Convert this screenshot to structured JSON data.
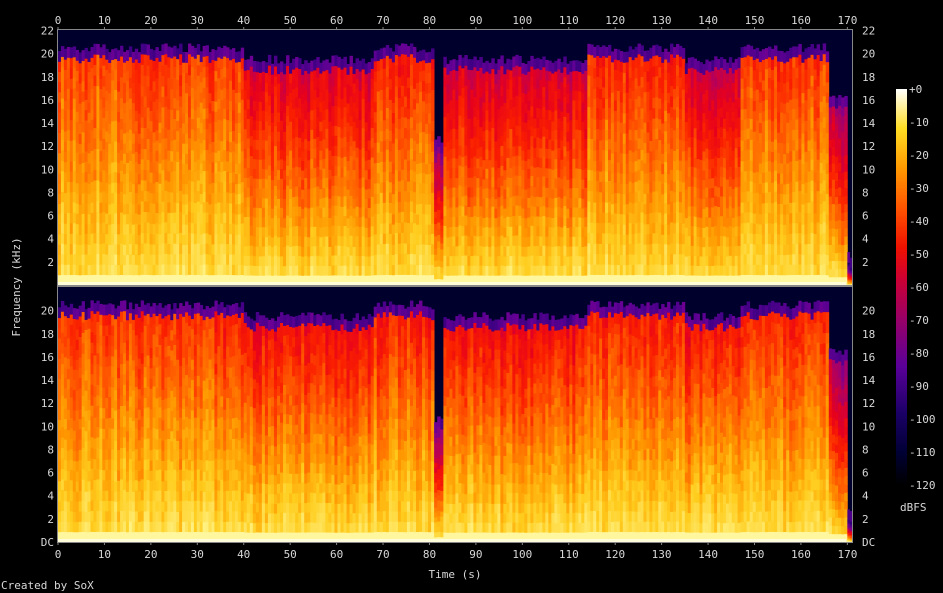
{
  "chart_data": {
    "type": "heatmap",
    "xlabel": "Time (s)",
    "ylabel": "Frequency (kHz)",
    "xlim": [
      0,
      171
    ],
    "ylim": [
      0,
      22.05
    ],
    "x_ticks": [
      0,
      10,
      20,
      30,
      40,
      50,
      60,
      70,
      80,
      90,
      100,
      110,
      120,
      130,
      140,
      150,
      160,
      170
    ],
    "y_ticks_top": [
      "2",
      "4",
      "6",
      "8",
      "10",
      "12",
      "14",
      "16",
      "18",
      "20",
      "22"
    ],
    "y_ticks_bottom": [
      "DC",
      "2",
      "4",
      "6",
      "8",
      "10",
      "12",
      "14",
      "16",
      "18",
      "20"
    ],
    "colorbar": {
      "label": "dBFS",
      "range": [
        -120,
        0
      ],
      "ticks": [
        "+0",
        "-10",
        "-20",
        "-30",
        "-40",
        "-50",
        "-60",
        "-70",
        "-80",
        "-90",
        "-100",
        "-110",
        "-120"
      ],
      "colormap": "sox-heat"
    },
    "channels": [
      {
        "segments": [
          {
            "t0": 0,
            "t1": 14,
            "cutoff_khz": 20,
            "level_db": -45
          },
          {
            "t0": 14,
            "t1": 28,
            "cutoff_khz": 20,
            "level_db": -50
          },
          {
            "t0": 28,
            "t1": 40,
            "cutoff_khz": 20,
            "level_db": -48
          },
          {
            "t0": 40,
            "t1": 68,
            "cutoff_khz": 19,
            "level_db": -60
          },
          {
            "t0": 68,
            "t1": 81,
            "cutoff_khz": 20,
            "level_db": -52
          },
          {
            "t0": 81,
            "t1": 83,
            "cutoff_khz": 12,
            "level_db": -75
          },
          {
            "t0": 83,
            "t1": 114,
            "cutoff_khz": 19,
            "level_db": -62
          },
          {
            "t0": 114,
            "t1": 135,
            "cutoff_khz": 20,
            "level_db": -50
          },
          {
            "t0": 135,
            "t1": 147,
            "cutoff_khz": 19,
            "level_db": -62
          },
          {
            "t0": 147,
            "t1": 166,
            "cutoff_khz": 20,
            "level_db": -48
          },
          {
            "t0": 166,
            "t1": 170,
            "cutoff_khz": 16,
            "level_db": -70
          },
          {
            "t0": 170,
            "t1": 171,
            "cutoff_khz": 2,
            "level_db": -100
          }
        ]
      },
      {
        "segments": [
          {
            "t0": 0,
            "t1": 14,
            "cutoff_khz": 20,
            "level_db": -47
          },
          {
            "t0": 14,
            "t1": 28,
            "cutoff_khz": 20,
            "level_db": -50
          },
          {
            "t0": 28,
            "t1": 40,
            "cutoff_khz": 20,
            "level_db": -50
          },
          {
            "t0": 40,
            "t1": 68,
            "cutoff_khz": 19,
            "level_db": -55
          },
          {
            "t0": 68,
            "t1": 81,
            "cutoff_khz": 20,
            "level_db": -52
          },
          {
            "t0": 81,
            "t1": 83,
            "cutoff_khz": 10,
            "level_db": -78
          },
          {
            "t0": 83,
            "t1": 114,
            "cutoff_khz": 19,
            "level_db": -55
          },
          {
            "t0": 114,
            "t1": 135,
            "cutoff_khz": 20,
            "level_db": -52
          },
          {
            "t0": 135,
            "t1": 147,
            "cutoff_khz": 19,
            "level_db": -55
          },
          {
            "t0": 147,
            "t1": 166,
            "cutoff_khz": 20,
            "level_db": -50
          },
          {
            "t0": 166,
            "t1": 170,
            "cutoff_khz": 16,
            "level_db": -70
          },
          {
            "t0": 170,
            "t1": 171,
            "cutoff_khz": 2,
            "level_db": -100
          }
        ]
      }
    ]
  },
  "footer": {
    "credit": "Created by SoX"
  }
}
